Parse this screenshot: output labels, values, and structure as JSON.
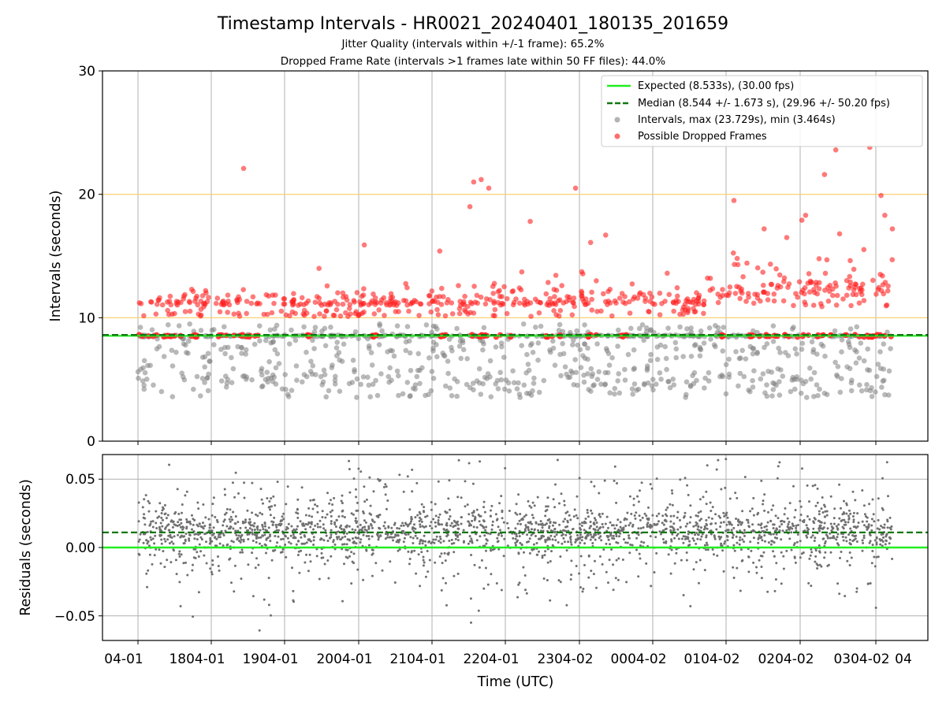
{
  "figure": {
    "title": "Timestamp Intervals - HR0021_20240401_180135_201659",
    "subtitle_jitter": "Jitter Quality (intervals within +/-1 frame): 65.2%",
    "subtitle_dropped": "Dropped Frame Rate (intervals >1 frames late within 50 FF files): 44.0%",
    "xlabel": "Time (UTC)",
    "xtick_labels": [
      "04-01",
      "1804-01",
      "1904-01",
      "2004-01",
      "2104-01",
      "2204-01",
      "2304-02",
      "0004-02",
      "0104-02",
      "0204-02",
      "0304-02",
      "04"
    ]
  },
  "chart_data": [
    {
      "type": "scatter",
      "panel": "intervals",
      "ylabel": "Intervals (seconds)",
      "ylim": [
        0,
        30
      ],
      "yticks": [
        0,
        10,
        20,
        30
      ],
      "ytick_labels": [
        "0",
        "10",
        "20",
        "30"
      ],
      "grid": "on",
      "legend_position": "top-right",
      "reference_lines": [
        {
          "name": "upper band",
          "y": 20,
          "color": "#ffcc66"
        },
        {
          "name": "lower band",
          "y": 10,
          "color": "#ffcc66"
        }
      ],
      "series": [
        {
          "name": "Expected (8.533s), (30.00 fps)",
          "kind": "line",
          "y": 8.533,
          "color": "#22ee22"
        },
        {
          "name": "Median (8.544 +/- 1.673 s), (29.96 +/- 50.20 fps)",
          "kind": "dashed-line",
          "y": 8.544,
          "color": "#117711"
        },
        {
          "name": "Intervals, max (23.729s), min (3.464s)",
          "kind": "scatter",
          "color": "#808080",
          "max": 23.729,
          "min": 3.464,
          "typical_range": [
            3.5,
            9.5
          ]
        },
        {
          "name": "Possible Dropped Frames",
          "kind": "scatter",
          "color": "#ff2222",
          "baseline": 8.533,
          "typical_range": [
            9.5,
            13.5
          ],
          "outliers": [
            {
              "x": 0.14,
              "y": 22.1
            },
            {
              "x": 0.44,
              "y": 19.0
            },
            {
              "x": 0.445,
              "y": 21.0
            },
            {
              "x": 0.455,
              "y": 21.2
            },
            {
              "x": 0.465,
              "y": 20.5
            },
            {
              "x": 0.58,
              "y": 20.5
            },
            {
              "x": 0.79,
              "y": 19.5
            },
            {
              "x": 0.97,
              "y": 23.8
            },
            {
              "x": 0.985,
              "y": 19.9
            },
            {
              "x": 0.925,
              "y": 23.6
            },
            {
              "x": 0.91,
              "y": 21.6
            },
            {
              "x": 0.885,
              "y": 18.3
            },
            {
              "x": 0.88,
              "y": 17.9
            },
            {
              "x": 0.93,
              "y": 16.8
            },
            {
              "x": 0.99,
              "y": 18.3
            },
            {
              "x": 1.0,
              "y": 17.2
            },
            {
              "x": 0.52,
              "y": 17.8
            },
            {
              "x": 0.62,
              "y": 16.7
            },
            {
              "x": 0.83,
              "y": 17.2
            },
            {
              "x": 0.24,
              "y": 14.0
            },
            {
              "x": 0.3,
              "y": 15.9
            },
            {
              "x": 0.4,
              "y": 15.4
            },
            {
              "x": 0.6,
              "y": 16.1
            },
            {
              "x": 0.86,
              "y": 16.5
            }
          ]
        }
      ]
    },
    {
      "type": "scatter",
      "panel": "residuals",
      "ylabel": "Residuals (seconds)",
      "ylim": [
        -0.068,
        0.068
      ],
      "yticks": [
        -0.05,
        0.0,
        0.05
      ],
      "ytick_labels": [
        "−0.05",
        "0.00",
        "0.05"
      ],
      "grid": "on",
      "series": [
        {
          "name": "Expected",
          "kind": "line",
          "y": 0.0,
          "color": "#22ee22"
        },
        {
          "name": "Median",
          "kind": "dashed-line",
          "y": 0.011,
          "color": "#117711"
        },
        {
          "name": "Residuals",
          "kind": "scatter",
          "color": "#707070",
          "typical_range": [
            -0.05,
            0.06
          ],
          "center": 0.012
        }
      ]
    }
  ],
  "colors": {
    "grid": "#b0b0b0",
    "band": "#ffcc66",
    "expected": "#22ee22",
    "median": "#117711",
    "intervals": "#808080",
    "dropped": "#ff2222",
    "residuals": "#707070"
  }
}
